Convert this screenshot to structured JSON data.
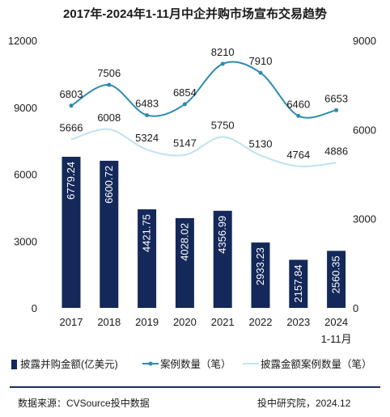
{
  "title": "2017年-2024年1-11月中企并购市场宣布交易趋势",
  "chart_data": {
    "type": "bar+line",
    "categories": [
      "2017",
      "2018",
      "2019",
      "2020",
      "2021",
      "2022",
      "2023",
      "2024"
    ],
    "category_sublabels": [
      "",
      "",
      "",
      "",
      "",
      "",
      "",
      "1-11月"
    ],
    "bar_series": {
      "name": "披露并购金额(亿美元)",
      "color": "#14285a",
      "values": [
        6779.24,
        6600.72,
        4421.75,
        4028.02,
        4356.99,
        2933.23,
        2157.84,
        2560.35
      ],
      "labels": [
        "6779.24",
        "6600.72",
        "4421.75",
        "4028.02",
        "4356.99",
        "2933.23",
        "2157.84",
        "2560.35"
      ]
    },
    "line_series": [
      {
        "name": "案例数量（笔）",
        "color": "#2e8bb0",
        "values": [
          6803,
          7506,
          6483,
          6854,
          8210,
          7910,
          6460,
          6653
        ]
      },
      {
        "name": "披露金额案例数量（笔）",
        "color": "#bfe3ef",
        "values": [
          5666,
          6008,
          5324,
          5147,
          5750,
          5130,
          4764,
          4886
        ]
      }
    ],
    "left_axis": {
      "min": 0,
      "max": 12000,
      "ticks": [
        "0",
        "3000",
        "6000",
        "9000",
        "12000"
      ]
    },
    "right_axis": {
      "min": 0,
      "max": 9000,
      "ticks": [
        "0",
        "3000",
        "6000",
        "9000"
      ]
    },
    "grid": false,
    "legend_position": "bottom"
  },
  "footer": {
    "source": "数据来源：CVSource投中数据",
    "org": "投中研究院，2024.12"
  }
}
